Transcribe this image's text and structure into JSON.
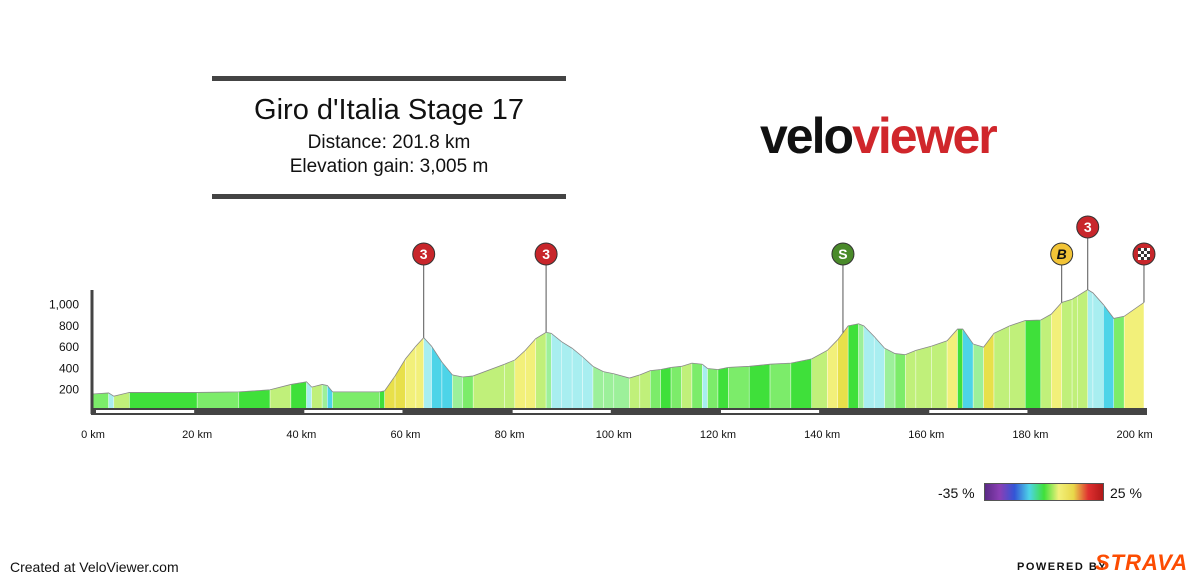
{
  "header": {
    "title": "Giro d'Italia Stage 17",
    "distance": "Distance: 201.8 km",
    "elevation_gain": "Elevation gain: 3,005 m"
  },
  "logo": {
    "part1": "velo",
    "part2": "viewer",
    "color1": "#111111",
    "color2": "#d0262b"
  },
  "legend": {
    "low": "-35 %",
    "high": "25 %"
  },
  "footer": {
    "credit": "Created at VeloViewer.com",
    "powered_by": "POWERED BY",
    "strava": "STRAVA"
  },
  "chart_data": {
    "type": "area",
    "xlim": [
      0,
      201.8
    ],
    "ylim": [
      0,
      1200
    ],
    "x_ticks": [
      0,
      20,
      40,
      60,
      80,
      100,
      120,
      140,
      160,
      180,
      200
    ],
    "x_tick_labels": [
      "0 km",
      "20 km",
      "40 km",
      "60 km",
      "80 km",
      "100 km",
      "120 km",
      "140 km",
      "160 km",
      "180 km",
      "200 km"
    ],
    "y_ticks": [
      200,
      400,
      600,
      800,
      1000
    ],
    "y_tick_labels": [
      "200",
      "400",
      "600",
      "800",
      "1,000"
    ],
    "profile": [
      [
        0,
        150
      ],
      [
        3,
        160
      ],
      [
        4,
        130
      ],
      [
        7,
        165
      ],
      [
        20,
        165
      ],
      [
        28,
        170
      ],
      [
        34,
        190
      ],
      [
        38,
        240
      ],
      [
        41,
        265
      ],
      [
        42,
        215
      ],
      [
        44,
        240
      ],
      [
        45,
        230
      ],
      [
        46,
        170
      ],
      [
        55,
        170
      ],
      [
        56,
        180
      ],
      [
        58,
        320
      ],
      [
        60,
        480
      ],
      [
        62,
        600
      ],
      [
        63.5,
        680
      ],
      [
        65,
        600
      ],
      [
        67,
        450
      ],
      [
        69,
        330
      ],
      [
        71,
        310
      ],
      [
        73,
        320
      ],
      [
        79,
        430
      ],
      [
        81,
        470
      ],
      [
        83,
        560
      ],
      [
        85,
        670
      ],
      [
        87,
        730
      ],
      [
        88,
        720
      ],
      [
        90,
        640
      ],
      [
        92,
        580
      ],
      [
        94,
        500
      ],
      [
        96,
        410
      ],
      [
        98,
        360
      ],
      [
        100,
        340
      ],
      [
        103,
        300
      ],
      [
        105,
        330
      ],
      [
        107,
        370
      ],
      [
        109,
        380
      ],
      [
        111,
        400
      ],
      [
        113,
        410
      ],
      [
        115,
        440
      ],
      [
        117,
        430
      ],
      [
        118,
        390
      ],
      [
        120,
        380
      ],
      [
        122,
        400
      ],
      [
        126,
        410
      ],
      [
        130,
        430
      ],
      [
        134,
        440
      ],
      [
        138,
        480
      ],
      [
        141,
        560
      ],
      [
        143,
        660
      ],
      [
        145,
        790
      ],
      [
        147,
        810
      ],
      [
        148,
        790
      ],
      [
        150,
        690
      ],
      [
        152,
        580
      ],
      [
        154,
        530
      ],
      [
        156,
        520
      ],
      [
        158,
        560
      ],
      [
        161,
        600
      ],
      [
        164,
        650
      ],
      [
        166,
        760
      ],
      [
        167,
        760
      ],
      [
        169,
        620
      ],
      [
        171,
        590
      ],
      [
        173,
        720
      ],
      [
        176,
        790
      ],
      [
        179,
        840
      ],
      [
        182,
        845
      ],
      [
        184,
        900
      ],
      [
        186,
        1010
      ],
      [
        188,
        1040
      ],
      [
        189,
        1070
      ],
      [
        191,
        1130
      ],
      [
        192,
        1100
      ],
      [
        194,
        990
      ],
      [
        196,
        860
      ],
      [
        198,
        880
      ],
      [
        201.8,
        1010
      ]
    ],
    "gradient_colors": [
      "#7cec6a",
      "#3fe03a",
      "#c0f07a",
      "#f2f07a",
      "#e8e04a",
      "#a8eef0",
      "#4dd4e8",
      "#6bb0e0",
      "#9cf09a"
    ],
    "gradient_scale": [
      "#5b2a86",
      "#8b3fb5",
      "#3355d6",
      "#4dd4e8",
      "#3fe03a",
      "#f2f07a",
      "#e8d84a",
      "#e03030",
      "#b01818"
    ],
    "markers": [
      {
        "km": 63.5,
        "label": "3",
        "kind": "climb-3"
      },
      {
        "km": 87,
        "label": "3",
        "kind": "climb-3"
      },
      {
        "km": 144,
        "label": "S",
        "kind": "sprint"
      },
      {
        "km": 186,
        "label": "B",
        "kind": "bonus"
      },
      {
        "km": 191,
        "label": "3",
        "kind": "climb-3"
      },
      {
        "km": 201.8,
        "label": "",
        "kind": "finish"
      }
    ]
  }
}
